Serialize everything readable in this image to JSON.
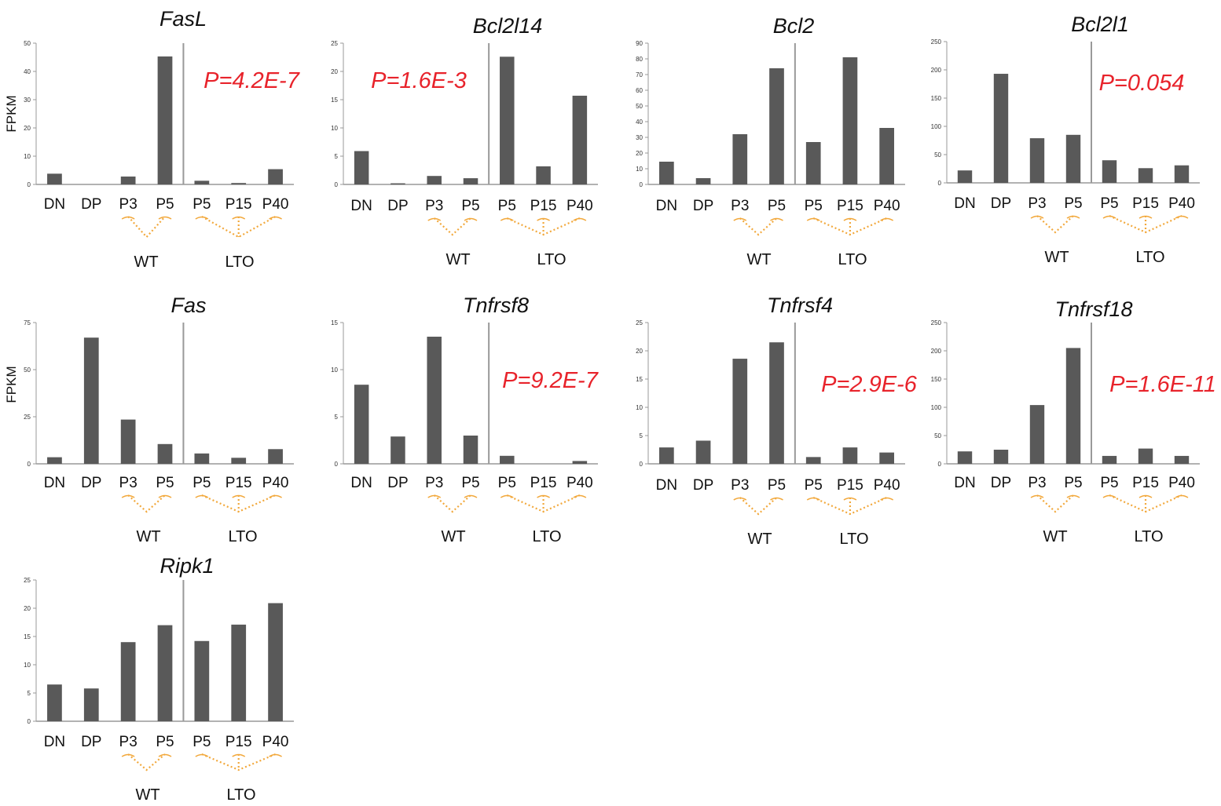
{
  "colors": {
    "bar": "#595959",
    "axis": "#999999",
    "pvalue": "#e8232b",
    "bracket": "#f2a83b",
    "text": "#111111"
  },
  "chart_data": [
    {
      "type": "bar",
      "title": "FasL",
      "ylabel": "FPKM",
      "ylim": [
        0,
        50
      ],
      "yticks": [
        0,
        10,
        20,
        30,
        40,
        50
      ],
      "categories": [
        "DN",
        "DP",
        "P3",
        "P5",
        "P5",
        "P15",
        "P40"
      ],
      "values": [
        3.8,
        0,
        2.8,
        45.3,
        1.3,
        0.5,
        5.4
      ],
      "groups": [
        "WT",
        "LTO"
      ],
      "pvalue": "P=4.2E-7"
    },
    {
      "type": "bar",
      "title": "Bcl2l14",
      "ylabel": "",
      "ylim": [
        0,
        25
      ],
      "yticks": [
        0,
        5,
        10,
        15,
        20,
        25
      ],
      "categories": [
        "DN",
        "DP",
        "P3",
        "P5",
        "P5",
        "P15",
        "P40"
      ],
      "values": [
        5.9,
        0.2,
        1.5,
        1.1,
        22.6,
        3.2,
        15.7
      ],
      "groups": [
        "WT",
        "LTO"
      ],
      "pvalue": "P=1.6E-3"
    },
    {
      "type": "bar",
      "title": "Bcl2",
      "ylabel": "",
      "ylim": [
        0,
        90
      ],
      "yticks": [
        0,
        10,
        20,
        30,
        40,
        50,
        60,
        70,
        80,
        90
      ],
      "categories": [
        "DN",
        "DP",
        "P3",
        "P5",
        "P5",
        "P15",
        "P40"
      ],
      "values": [
        14.5,
        4,
        32,
        74,
        27,
        81,
        36
      ],
      "groups": [
        "WT",
        "LTO"
      ],
      "pvalue": ""
    },
    {
      "type": "bar",
      "title": "Bcl2l1",
      "ylabel": "",
      "ylim": [
        0,
        250
      ],
      "yticks": [
        0,
        50,
        100,
        150,
        200,
        250
      ],
      "categories": [
        "DN",
        "DP",
        "P3",
        "P5",
        "P5",
        "P15",
        "P40"
      ],
      "values": [
        22,
        193,
        79,
        85,
        40,
        26,
        31
      ],
      "groups": [
        "WT",
        "LTO"
      ],
      "pvalue": "P=0.054"
    },
    {
      "type": "bar",
      "title": "Fas",
      "ylabel": "FPKM",
      "ylim": [
        0,
        75
      ],
      "yticks": [
        0,
        25,
        50,
        75
      ],
      "categories": [
        "DN",
        "DP",
        "P3",
        "P5",
        "P5",
        "P15",
        "P40"
      ],
      "values": [
        3.5,
        67,
        23.5,
        10.5,
        5.5,
        3.2,
        7.8
      ],
      "groups": [
        "WT",
        "LTO"
      ],
      "pvalue": ""
    },
    {
      "type": "bar",
      "title": "Tnfrsf8",
      "ylabel": "",
      "ylim": [
        0,
        15
      ],
      "yticks": [
        0,
        5,
        10,
        15
      ],
      "categories": [
        "DN",
        "DP",
        "P3",
        "P5",
        "P5",
        "P15",
        "P40"
      ],
      "values": [
        8.4,
        2.9,
        13.5,
        3.0,
        0.85,
        0,
        0.3
      ],
      "groups": [
        "WT",
        "LTO"
      ],
      "pvalue": "P=9.2E-7"
    },
    {
      "type": "bar",
      "title": "Tnfrsf4",
      "ylabel": "",
      "ylim": [
        0,
        25
      ],
      "yticks": [
        0,
        5,
        10,
        15,
        20,
        25
      ],
      "categories": [
        "DN",
        "DP",
        "P3",
        "P5",
        "P5",
        "P15",
        "P40"
      ],
      "values": [
        2.9,
        4.1,
        18.6,
        21.5,
        1.2,
        2.9,
        2.0
      ],
      "groups": [
        "WT",
        "LTO"
      ],
      "pvalue": "P=2.9E-6"
    },
    {
      "type": "bar",
      "title": "Tnfrsf18",
      "ylabel": "",
      "ylim": [
        0,
        250
      ],
      "yticks": [
        0,
        50,
        100,
        150,
        200,
        250
      ],
      "categories": [
        "DN",
        "DP",
        "P3",
        "P5",
        "P5",
        "P15",
        "P40"
      ],
      "values": [
        22,
        25,
        104,
        205,
        14,
        27,
        14
      ],
      "groups": [
        "WT",
        "LTO"
      ],
      "pvalue": "P=1.6E-11"
    },
    {
      "type": "bar",
      "title": "Ripk1",
      "ylabel": "",
      "ylim": [
        0,
        25
      ],
      "yticks": [
        0,
        5,
        10,
        15,
        20,
        25
      ],
      "categories": [
        "DN",
        "DP",
        "P3",
        "P5",
        "P5",
        "P15",
        "P40"
      ],
      "values": [
        6.5,
        5.8,
        14.0,
        17.0,
        14.2,
        17.1,
        20.9
      ],
      "groups": [
        "WT",
        "LTO"
      ],
      "pvalue": ""
    }
  ]
}
